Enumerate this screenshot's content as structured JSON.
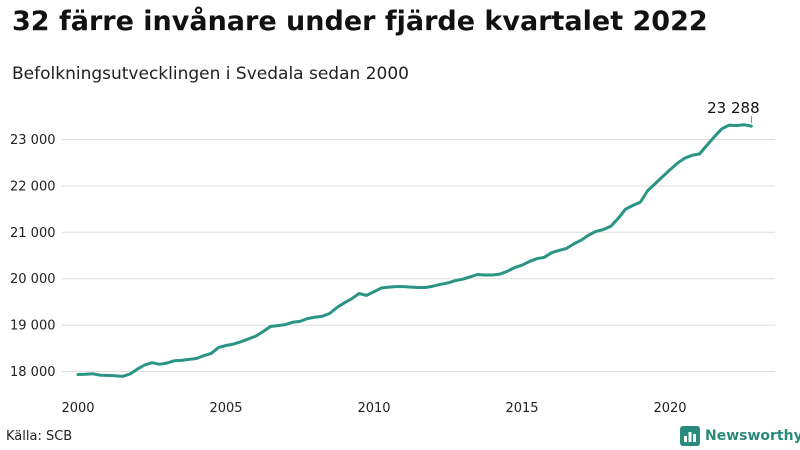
{
  "title": "32 färre invånare under fjärde kvartalet 2022",
  "subtitle": "Befolkningsutvecklingen i Svedala sedan 2000",
  "source": "Källa: SCB",
  "brand": {
    "name": "Newsworthy",
    "icon": "newsworthy-logo-icon"
  },
  "colors": {
    "line": "#2a9583",
    "grid": "#dddddd",
    "text": "#222222",
    "brand": "#2a8a7c"
  },
  "chart_data": {
    "type": "line",
    "title": "32 färre invånare under fjärde kvartalet 2022",
    "subtitle": "Befolkningsutvecklingen i Svedala sedan 2000",
    "xlabel": "",
    "ylabel": "",
    "xlim": [
      2000,
      2023
    ],
    "ylim": [
      17900,
      23500
    ],
    "x_ticks": [
      {
        "value": 2000,
        "label": "2000"
      },
      {
        "value": 2005,
        "label": "2005"
      },
      {
        "value": 2010,
        "label": "2010"
      },
      {
        "value": 2015,
        "label": "2015"
      },
      {
        "value": 2020,
        "label": "2020"
      }
    ],
    "y_ticks": [
      {
        "value": 18000,
        "label": "18 000"
      },
      {
        "value": 19000,
        "label": "19 000"
      },
      {
        "value": 20000,
        "label": "20 000"
      },
      {
        "value": 21000,
        "label": "21 000"
      },
      {
        "value": 22000,
        "label": "22 000"
      },
      {
        "value": 23000,
        "label": "23 000"
      }
    ],
    "grid": "horizontal",
    "end_label": "23 288",
    "series": [
      {
        "x": [
          2000.0,
          2000.25,
          2000.5,
          2000.75,
          2001.0,
          2001.25,
          2001.5,
          2001.75,
          2002.0,
          2002.25,
          2002.5,
          2002.75,
          2003.0,
          2003.25,
          2003.5,
          2003.75,
          2004.0,
          2004.25,
          2004.5,
          2004.75,
          2005.0,
          2005.25,
          2005.5,
          2005.75,
          2006.0,
          2006.25,
          2006.5,
          2006.75,
          2007.0,
          2007.25,
          2007.5,
          2007.75,
          2008.0,
          2008.25,
          2008.5,
          2008.75,
          2009.0,
          2009.25,
          2009.5,
          2009.75,
          2010.0,
          2010.25,
          2010.5,
          2010.75,
          2011.0,
          2011.25,
          2011.5,
          2011.75,
          2012.0,
          2012.25,
          2012.5,
          2012.75,
          2013.0,
          2013.25,
          2013.5,
          2013.75,
          2014.0,
          2014.25,
          2014.5,
          2014.75,
          2015.0,
          2015.25,
          2015.5,
          2015.75,
          2016.0,
          2016.25,
          2016.5,
          2016.75,
          2017.0,
          2017.25,
          2017.5,
          2017.75,
          2018.0,
          2018.25,
          2018.5,
          2018.75,
          2019.0,
          2019.25,
          2019.5,
          2019.75,
          2020.0,
          2020.25,
          2020.5,
          2020.75,
          2021.0,
          2021.25,
          2021.5,
          2021.75,
          2022.0,
          2022.25,
          2022.5,
          2022.75
        ],
        "values": [
          17935,
          17940,
          17950,
          17920,
          17915,
          17910,
          17895,
          17945,
          18050,
          18140,
          18190,
          18155,
          18180,
          18230,
          18240,
          18260,
          18280,
          18340,
          18390,
          18520,
          18560,
          18590,
          18640,
          18700,
          18760,
          18860,
          18970,
          18990,
          19010,
          19060,
          19080,
          19140,
          19170,
          19190,
          19250,
          19380,
          19480,
          19570,
          19680,
          19640,
          19720,
          19800,
          19820,
          19830,
          19830,
          19820,
          19810,
          19810,
          19840,
          19880,
          19910,
          19960,
          19990,
          20040,
          20090,
          20080,
          20080,
          20100,
          20160,
          20240,
          20290,
          20370,
          20430,
          20460,
          20560,
          20610,
          20650,
          20750,
          20830,
          20940,
          21020,
          21060,
          21130,
          21300,
          21500,
          21580,
          21650,
          21900,
          22050,
          22200,
          22350,
          22490,
          22600,
          22660,
          22690,
          22880,
          23060,
          23230,
          23310,
          23300,
          23320,
          23288
        ]
      }
    ]
  }
}
